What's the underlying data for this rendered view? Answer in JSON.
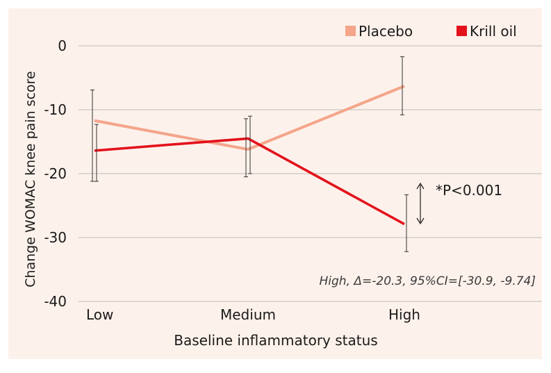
{
  "colors": {
    "panel_background": "#fdf1eb",
    "placebo": "#f4a58a",
    "krill_oil": "#e3121b",
    "text": "#1a1a1a",
    "annotation": "#3a3a3a",
    "grid": "#bdbdbd"
  },
  "chart_data": {
    "type": "line",
    "xlabel": "Baseline inflammatory status",
    "ylabel": "Change WOMAC knee pain score",
    "categories": [
      "Low",
      "Medium",
      "High"
    ],
    "ylim": [
      -40,
      0
    ],
    "yticks": [
      0,
      -10,
      -20,
      -30,
      -40
    ],
    "grid": "horizontal",
    "legend_position": "top-right",
    "series": [
      {
        "name": "Placebo",
        "color": "#f4a58a",
        "values": [
          -11.7,
          -16.2,
          -6.3
        ],
        "error_low": [
          -21.2,
          -20.5,
          -10.8
        ],
        "error_high": [
          -6.9,
          -11.4,
          -1.7
        ]
      },
      {
        "name": "Krill oil",
        "color": "#e3121b",
        "values": [
          -16.4,
          -14.5,
          -27.9
        ],
        "error_low": [
          -21.2,
          -20.0,
          -32.2
        ],
        "error_high": [
          -12.3,
          -11.0,
          -23.3
        ]
      }
    ],
    "annotations": {
      "significance": "*P<0.001",
      "effect": "High, Δ=-20.3, 95%CI=[-30.9, -9.74]"
    }
  }
}
